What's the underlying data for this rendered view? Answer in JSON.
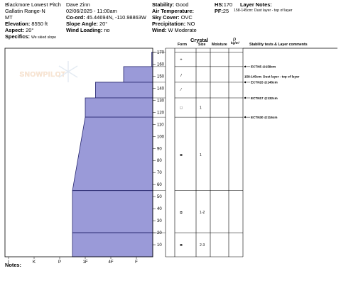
{
  "header": {
    "col1": [
      "Blackmore Lowest Pitch",
      "Gallatin Range-N",
      "MT"
    ],
    "col2": [
      "Dave Zinn",
      "02/06/2025 - 11:00am"
    ],
    "elevation": {
      "label": "Elevation:",
      "value": "8550 ft"
    },
    "aspect": {
      "label": "Aspect:",
      "value": "20°"
    },
    "specifics": {
      "label": "Specifics:",
      "value": "We skied slope"
    },
    "coord": {
      "label": "Co-ord:",
      "value": "45.44694N, -110.98863W"
    },
    "slope_angle": {
      "label": "Slope Angle:",
      "value": "20°"
    },
    "wind_loading": {
      "label": "Wind Loading:",
      "value": "no"
    },
    "stability": {
      "label": "Stability:",
      "value": "Good"
    },
    "air_temp": {
      "label": "Air Temperature:",
      "value": ""
    },
    "sky_cover": {
      "label": "Sky Cover:",
      "value": "OVC"
    },
    "precipitation": {
      "label": "Precipitation:",
      "value": "NO"
    },
    "wind": {
      "label": "Wind:",
      "value": "W Moderate"
    },
    "hs": {
      "label": "HS:",
      "value": "170"
    },
    "pf": {
      "label": "PF:",
      "value": "25"
    },
    "layer_notes": {
      "label": "Layer Notes:",
      "value": "158-145cm: Dust layer - top of layer"
    }
  },
  "watermark": "SNOWPILOT",
  "table_headers": {
    "form": "Form",
    "crystal": "Crystal",
    "size": "Size",
    "moisture": "Moisture",
    "rho": "ρ",
    "rho_unit": "kg/m³",
    "stability": "Stability tests & Layer comments"
  },
  "hardness_labels": [
    "I",
    "K",
    "P",
    "1F",
    "4F",
    "F"
  ],
  "chart_data": {
    "type": "bar",
    "ylim": [
      0,
      175
    ],
    "y_ticks": [
      10,
      20,
      30,
      40,
      50,
      60,
      70,
      80,
      90,
      100,
      110,
      120,
      130,
      140,
      150,
      160,
      170
    ],
    "layers": [
      {
        "top": 170,
        "bottom": 158,
        "hardness_rank": 5.6
      },
      {
        "top": 158,
        "bottom": 145,
        "hardness_rank": 4.5
      },
      {
        "top": 145,
        "bottom": 132,
        "hardness_rank": 3.4
      },
      {
        "top": 132,
        "bottom": 116,
        "hardness_rank": 3.0
      },
      {
        "top": 116,
        "bottom": 55,
        "hardness_rank_top": 3.0,
        "hardness_rank_bottom": 2.5
      },
      {
        "top": 55,
        "bottom": 20,
        "hardness_rank": 2.5
      },
      {
        "top": 20,
        "bottom": 0,
        "hardness_rank": 2.5
      }
    ],
    "crystal_rows": [
      {
        "y": 164,
        "form": "+",
        "size": "",
        "moisture": ""
      },
      {
        "y": 151,
        "form": "/",
        "size": "",
        "moisture": ""
      },
      {
        "y": 139,
        "form": "⁄",
        "size": "",
        "moisture": ""
      },
      {
        "y": 124,
        "form": "□",
        "size": "1",
        "moisture": ""
      },
      {
        "y": 85,
        "form": "⧈",
        "size": "1",
        "moisture": ""
      },
      {
        "y": 37,
        "form": "⧈",
        "size": "1-2",
        "moisture": ""
      },
      {
        "y": 10,
        "form": "⧈",
        "size": "2-3",
        "moisture": ""
      }
    ],
    "tests": [
      {
        "y": 158,
        "label": "ECTN5 @158cm"
      },
      {
        "y": 145,
        "label": "ECTN15 @145cm"
      },
      {
        "y": 132,
        "label": "ECTN17 @132cm"
      },
      {
        "y": 116,
        "label": "ECTN30 @116cm"
      }
    ],
    "layer_comment": {
      "y": 150,
      "label": "158-145cm: Dust layer - top of layer"
    }
  },
  "notes": {
    "label": "Notes:",
    "value": ""
  }
}
